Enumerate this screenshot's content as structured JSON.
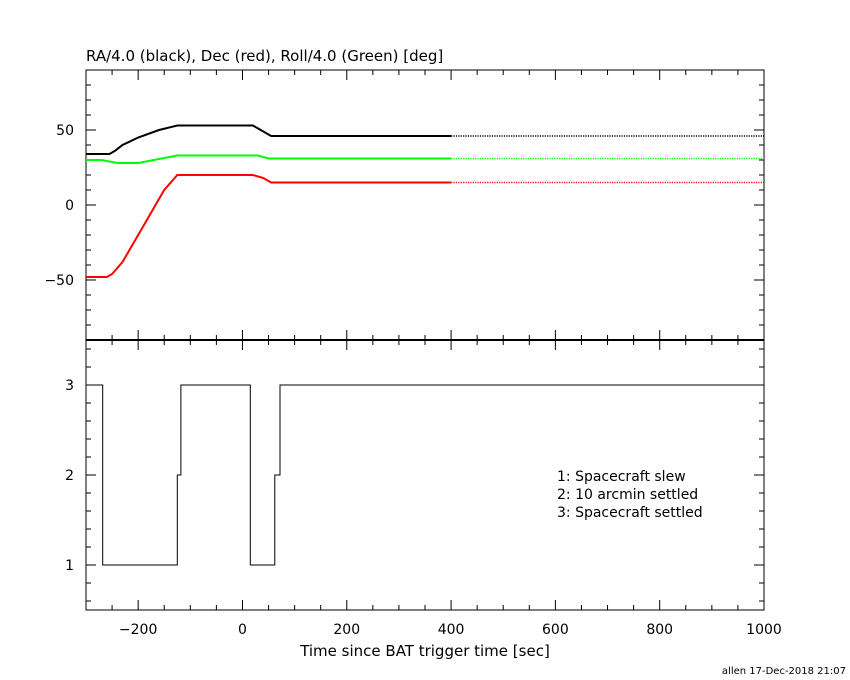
{
  "chart_data": [
    {
      "type": "line",
      "title": "RA/4.0 (black), Dec (red), Roll/4.0 (Green) [deg]",
      "xlim": [
        -300,
        1000
      ],
      "ylim": [
        -90,
        90
      ],
      "y_ticks": [
        -50,
        0,
        50
      ],
      "y_tick_labels": [
        "−50",
        "0",
        "50"
      ],
      "grid": false,
      "series": [
        {
          "color": "#000000",
          "x": [
            -300,
            -255,
            -245,
            -230,
            -200,
            -160,
            -125,
            20,
            35,
            55,
            1000
          ],
          "y": [
            34,
            34,
            36,
            40,
            45,
            50,
            53,
            53,
            50,
            46,
            46
          ]
        },
        {
          "color": "#ff0000",
          "x": [
            -300,
            -260,
            -250,
            -230,
            -190,
            -150,
            -125,
            20,
            40,
            55,
            1000
          ],
          "y": [
            -48,
            -48,
            -46,
            -38,
            -14,
            10,
            20,
            20,
            18,
            15,
            15
          ]
        },
        {
          "color": "#00ff00",
          "x": [
            -300,
            -270,
            -240,
            -200,
            -170,
            -125,
            30,
            50,
            1000
          ],
          "y": [
            30,
            30,
            28,
            28,
            30,
            33,
            33,
            31,
            31
          ]
        }
      ],
      "dotted_after_x": 400
    },
    {
      "type": "line",
      "xlabel": "Time since BAT trigger time [sec]",
      "xlim": [
        -300,
        1000
      ],
      "ylim": [
        0.5,
        3.5
      ],
      "x_ticks": [
        -200,
        0,
        200,
        400,
        600,
        800,
        1000
      ],
      "x_tick_labels": [
        "−200",
        "0",
        "200",
        "400",
        "600",
        "800",
        "1000"
      ],
      "y_ticks": [
        1,
        2,
        3
      ],
      "y_tick_labels": [
        "1",
        "2",
        "3"
      ],
      "grid": false,
      "series": [
        {
          "color": "#000000",
          "step": true,
          "x": [
            -300,
            -268,
            -268,
            -125,
            -125,
            -118,
            -118,
            15,
            15,
            62,
            62,
            72,
            72,
            1000
          ],
          "y": [
            3,
            3,
            1,
            1,
            2,
            2,
            3,
            3,
            1,
            1,
            2,
            2,
            3,
            3
          ]
        }
      ],
      "annotations": [
        "1: Spacecraft slew",
        "2: 10 arcmin settled",
        "3: Spacecraft settled"
      ]
    }
  ],
  "footer": "allen 17-Dec-2018 21:07"
}
